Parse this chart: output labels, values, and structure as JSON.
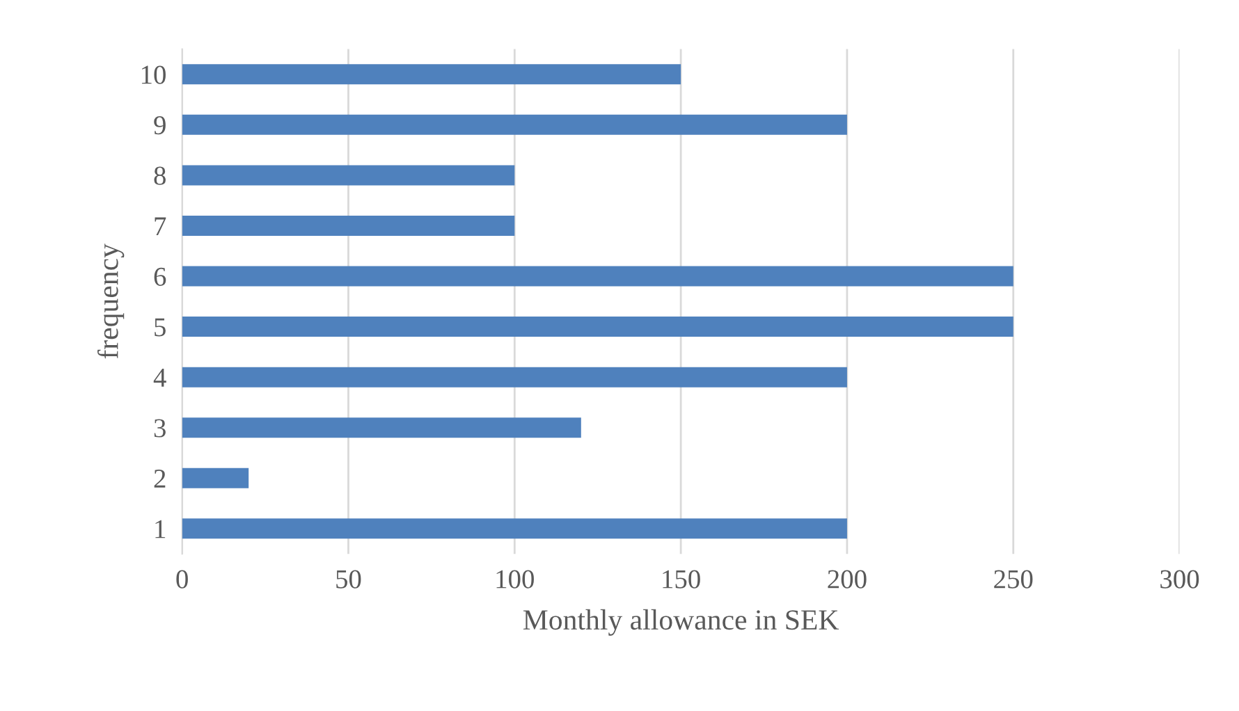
{
  "chart_data": {
    "type": "bar",
    "orientation": "horizontal",
    "categories": [
      "10",
      "9",
      "8",
      "7",
      "6",
      "5",
      "4",
      "3",
      "2",
      "1"
    ],
    "values": [
      150,
      200,
      100,
      100,
      250,
      250,
      200,
      120,
      20,
      200
    ],
    "color": "#4f81bd",
    "xlabel": "Monthly allowance in SEK",
    "ylabel": "frequency",
    "xlim": [
      0,
      300
    ],
    "xticks": [
      0,
      50,
      100,
      150,
      200,
      250,
      300
    ],
    "grid": "x",
    "legend": false
  }
}
